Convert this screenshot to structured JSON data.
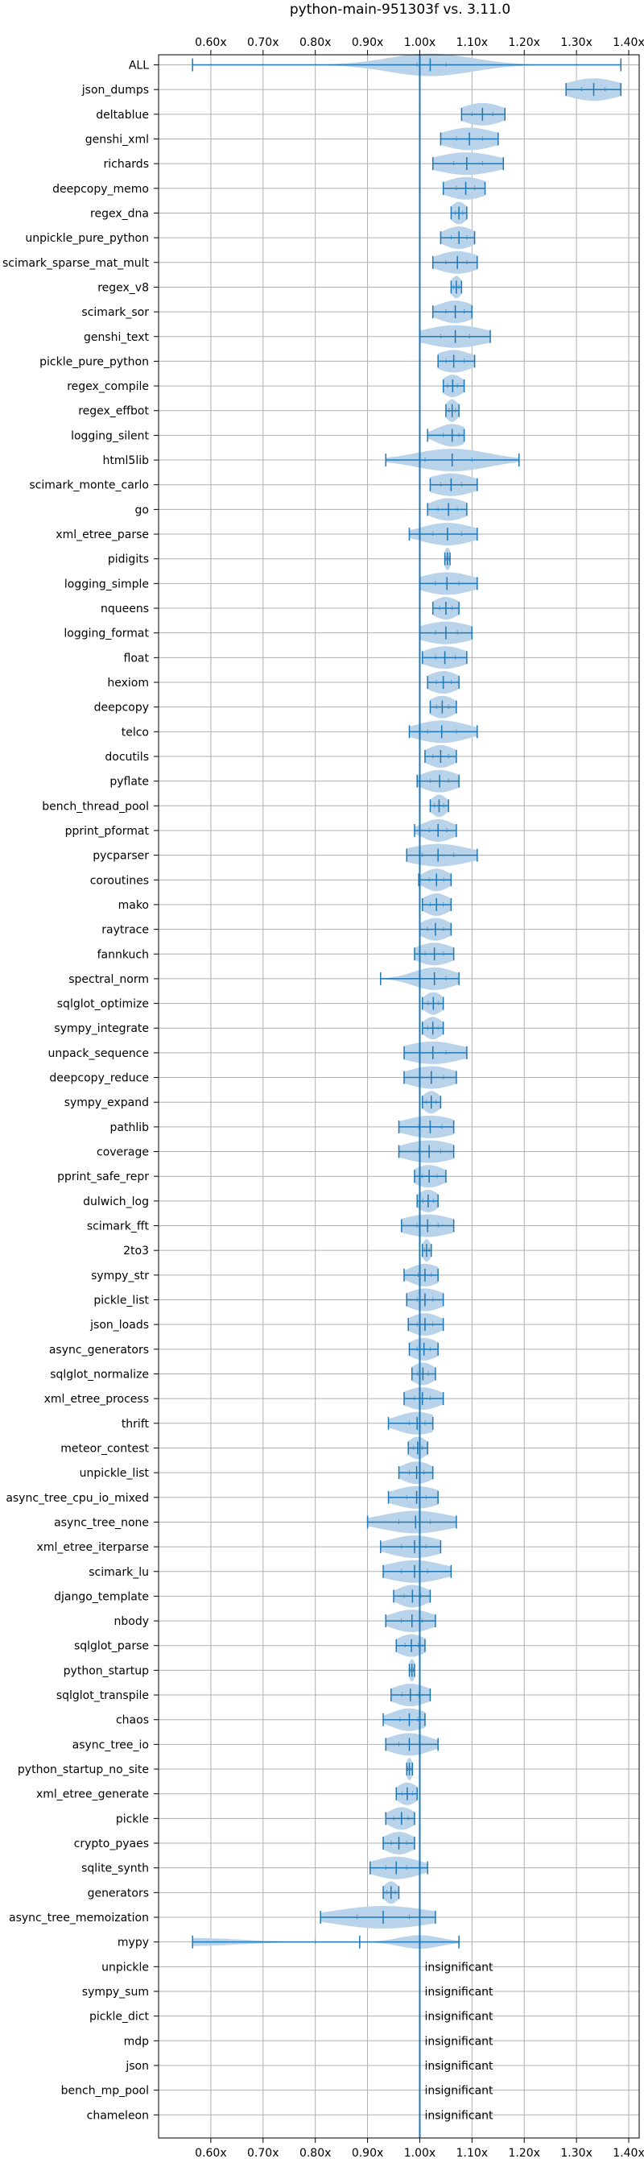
{
  "chart_data": {
    "type": "violin",
    "title": "python-main-951303f vs. 3.11.0",
    "orientation": "horizontal",
    "xlim": [
      0.5,
      1.42
    ],
    "xticks": [
      0.6,
      0.7,
      0.8,
      0.9,
      1.0,
      1.1,
      1.2,
      1.3,
      1.4
    ],
    "xtick_labels": [
      "0.60x",
      "0.70x",
      "0.80x",
      "0.90x",
      "1.00x",
      "1.10x",
      "1.20x",
      "1.30x",
      "1.40x"
    ],
    "xtick_positions": [
      "top",
      "bottom"
    ],
    "reference_line": 1.0,
    "grid": true,
    "colors": {
      "violin": "#b9d3ea",
      "line": "#1f77b4",
      "grid": "#b0b0b0",
      "text": "#000000"
    },
    "insignificant_text": "insignificant",
    "benchmarks": [
      {
        "name": "ALL",
        "min": 0.565,
        "max": 1.385,
        "median": 1.02,
        "q1": 0.995,
        "q3": 1.05,
        "spread": 0.08
      },
      {
        "name": "json_dumps",
        "min": 1.28,
        "max": 1.385,
        "median": 1.333,
        "q1": 1.31,
        "q3": 1.355,
        "spread": 0.05
      },
      {
        "name": "deltablue",
        "min": 1.08,
        "max": 1.163,
        "median": 1.12,
        "q1": 1.1,
        "q3": 1.14,
        "spread": 0.04
      },
      {
        "name": "genshi_xml",
        "min": 1.04,
        "max": 1.15,
        "median": 1.095,
        "q1": 1.07,
        "q3": 1.12,
        "spread": 0.05
      },
      {
        "name": "richards",
        "min": 1.025,
        "max": 1.16,
        "median": 1.09,
        "q1": 1.065,
        "q3": 1.12,
        "spread": 0.06
      },
      {
        "name": "deepcopy_memo",
        "min": 1.045,
        "max": 1.125,
        "median": 1.088,
        "q1": 1.07,
        "q3": 1.105,
        "spread": 0.04
      },
      {
        "name": "regex_dna",
        "min": 1.06,
        "max": 1.09,
        "median": 1.075,
        "q1": 1.068,
        "q3": 1.082,
        "spread": 0.015
      },
      {
        "name": "unpickle_pure_python",
        "min": 1.04,
        "max": 1.105,
        "median": 1.075,
        "q1": 1.06,
        "q3": 1.09,
        "spread": 0.03
      },
      {
        "name": "scimark_sparse_mat_mult",
        "min": 1.025,
        "max": 1.11,
        "median": 1.072,
        "q1": 1.05,
        "q3": 1.09,
        "spread": 0.04
      },
      {
        "name": "regex_v8",
        "min": 1.06,
        "max": 1.08,
        "median": 1.07,
        "q1": 1.065,
        "q3": 1.075,
        "spread": 0.01
      },
      {
        "name": "scimark_sor",
        "min": 1.025,
        "max": 1.1,
        "median": 1.068,
        "q1": 1.05,
        "q3": 1.085,
        "spread": 0.035
      },
      {
        "name": "genshi_text",
        "min": 1.0,
        "max": 1.135,
        "median": 1.068,
        "q1": 1.04,
        "q3": 1.095,
        "spread": 0.06
      },
      {
        "name": "pickle_pure_python",
        "min": 1.035,
        "max": 1.105,
        "median": 1.065,
        "q1": 1.05,
        "q3": 1.085,
        "spread": 0.035
      },
      {
        "name": "regex_compile",
        "min": 1.045,
        "max": 1.085,
        "median": 1.063,
        "q1": 1.053,
        "q3": 1.072,
        "spread": 0.02
      },
      {
        "name": "regex_effbot",
        "min": 1.05,
        "max": 1.075,
        "median": 1.062,
        "q1": 1.056,
        "q3": 1.068,
        "spread": 0.012
      },
      {
        "name": "logging_silent",
        "min": 1.015,
        "max": 1.085,
        "median": 1.062,
        "q1": 1.045,
        "q3": 1.075,
        "spread": 0.03
      },
      {
        "name": "html5lib",
        "min": 0.935,
        "max": 1.19,
        "median": 1.062,
        "q1": 1.01,
        "q3": 1.1,
        "spread": 0.07
      },
      {
        "name": "scimark_monte_carlo",
        "min": 1.02,
        "max": 1.11,
        "median": 1.06,
        "q1": 1.04,
        "q3": 1.08,
        "spread": 0.045
      },
      {
        "name": "go",
        "min": 1.015,
        "max": 1.09,
        "median": 1.055,
        "q1": 1.035,
        "q3": 1.072,
        "spread": 0.035
      },
      {
        "name": "xml_etree_parse",
        "min": 0.98,
        "max": 1.11,
        "median": 1.053,
        "q1": 1.025,
        "q3": 1.08,
        "spread": 0.05
      },
      {
        "name": "pidigits",
        "min": 1.048,
        "max": 1.058,
        "median": 1.053,
        "q1": 1.05,
        "q3": 1.056,
        "spread": 0.006
      },
      {
        "name": "logging_simple",
        "min": 1.0,
        "max": 1.11,
        "median": 1.052,
        "q1": 1.03,
        "q3": 1.075,
        "spread": 0.05
      },
      {
        "name": "nqueens",
        "min": 1.025,
        "max": 1.075,
        "median": 1.05,
        "q1": 1.038,
        "q3": 1.062,
        "spread": 0.025
      },
      {
        "name": "logging_format",
        "min": 1.0,
        "max": 1.1,
        "median": 1.05,
        "q1": 1.03,
        "q3": 1.072,
        "spread": 0.05
      },
      {
        "name": "float",
        "min": 1.005,
        "max": 1.09,
        "median": 1.048,
        "q1": 1.03,
        "q3": 1.068,
        "spread": 0.04
      },
      {
        "name": "hexiom",
        "min": 1.015,
        "max": 1.075,
        "median": 1.045,
        "q1": 1.032,
        "q3": 1.06,
        "spread": 0.03
      },
      {
        "name": "deepcopy",
        "min": 1.02,
        "max": 1.07,
        "median": 1.043,
        "q1": 1.032,
        "q3": 1.055,
        "spread": 0.025
      },
      {
        "name": "telco",
        "min": 0.98,
        "max": 1.11,
        "median": 1.042,
        "q1": 1.015,
        "q3": 1.07,
        "spread": 0.05
      },
      {
        "name": "docutils",
        "min": 1.01,
        "max": 1.07,
        "median": 1.04,
        "q1": 1.025,
        "q3": 1.055,
        "spread": 0.028
      },
      {
        "name": "pyflate",
        "min": 0.995,
        "max": 1.075,
        "median": 1.038,
        "q1": 1.02,
        "q3": 1.055,
        "spread": 0.035
      },
      {
        "name": "bench_thread_pool",
        "min": 1.02,
        "max": 1.055,
        "median": 1.037,
        "q1": 1.028,
        "q3": 1.046,
        "spread": 0.015
      },
      {
        "name": "pprint_pformat",
        "min": 0.99,
        "max": 1.07,
        "median": 1.035,
        "q1": 1.018,
        "q3": 1.052,
        "spread": 0.03
      },
      {
        "name": "pycparser",
        "min": 0.975,
        "max": 1.11,
        "median": 1.035,
        "q1": 1.005,
        "q3": 1.065,
        "spread": 0.06
      },
      {
        "name": "coroutines",
        "min": 0.998,
        "max": 1.06,
        "median": 1.032,
        "q1": 1.018,
        "q3": 1.046,
        "spread": 0.025
      },
      {
        "name": "mako",
        "min": 1.005,
        "max": 1.06,
        "median": 1.032,
        "q1": 1.02,
        "q3": 1.045,
        "spread": 0.025
      },
      {
        "name": "raytrace",
        "min": 1.0,
        "max": 1.06,
        "median": 1.03,
        "q1": 1.015,
        "q3": 1.045,
        "spread": 0.028
      },
      {
        "name": "fannkuch",
        "min": 0.99,
        "max": 1.065,
        "median": 1.028,
        "q1": 1.01,
        "q3": 1.045,
        "spread": 0.035
      },
      {
        "name": "spectral_norm",
        "min": 0.925,
        "max": 1.075,
        "median": 1.028,
        "q1": 1.0,
        "q3": 1.05,
        "spread": 0.04
      },
      {
        "name": "sqlglot_optimize",
        "min": 1.005,
        "max": 1.045,
        "median": 1.026,
        "q1": 1.016,
        "q3": 1.036,
        "spread": 0.018
      },
      {
        "name": "sympy_integrate",
        "min": 1.005,
        "max": 1.045,
        "median": 1.025,
        "q1": 1.015,
        "q3": 1.035,
        "spread": 0.018
      },
      {
        "name": "unpack_sequence",
        "min": 0.97,
        "max": 1.09,
        "median": 1.025,
        "q1": 1.0,
        "q3": 1.05,
        "spread": 0.055
      },
      {
        "name": "deepcopy_reduce",
        "min": 0.97,
        "max": 1.07,
        "median": 1.022,
        "q1": 1.0,
        "q3": 1.045,
        "spread": 0.045
      },
      {
        "name": "sympy_expand",
        "min": 1.005,
        "max": 1.04,
        "median": 1.022,
        "q1": 1.013,
        "q3": 1.031,
        "spread": 0.016
      },
      {
        "name": "pathlib",
        "min": 0.96,
        "max": 1.065,
        "median": 1.02,
        "q1": 0.998,
        "q3": 1.042,
        "spread": 0.05
      },
      {
        "name": "coverage",
        "min": 0.96,
        "max": 1.065,
        "median": 1.018,
        "q1": 0.998,
        "q3": 1.04,
        "spread": 0.05
      },
      {
        "name": "pprint_safe_repr",
        "min": 0.99,
        "max": 1.05,
        "median": 1.018,
        "q1": 1.005,
        "q3": 1.033,
        "spread": 0.03
      },
      {
        "name": "dulwich_log",
        "min": 0.995,
        "max": 1.035,
        "median": 1.016,
        "q1": 1.006,
        "q3": 1.026,
        "spread": 0.02
      },
      {
        "name": "scimark_fft",
        "min": 0.965,
        "max": 1.065,
        "median": 1.015,
        "q1": 0.995,
        "q3": 1.035,
        "spread": 0.05
      },
      {
        "name": "2to3",
        "min": 1.005,
        "max": 1.022,
        "median": 1.013,
        "q1": 1.009,
        "q3": 1.018,
        "spread": 0.008
      },
      {
        "name": "sympy_str",
        "min": 0.97,
        "max": 1.035,
        "median": 1.01,
        "q1": 0.997,
        "q3": 1.022,
        "spread": 0.03
      },
      {
        "name": "pickle_list",
        "min": 0.975,
        "max": 1.045,
        "median": 1.01,
        "q1": 0.995,
        "q3": 1.025,
        "spread": 0.035
      },
      {
        "name": "json_loads",
        "min": 0.978,
        "max": 1.045,
        "median": 1.01,
        "q1": 0.995,
        "q3": 1.025,
        "spread": 0.03
      },
      {
        "name": "async_generators",
        "min": 0.98,
        "max": 1.035,
        "median": 1.008,
        "q1": 0.995,
        "q3": 1.02,
        "spread": 0.028
      },
      {
        "name": "sqlglot_normalize",
        "min": 0.985,
        "max": 1.03,
        "median": 1.006,
        "q1": 0.996,
        "q3": 1.016,
        "spread": 0.022
      },
      {
        "name": "xml_etree_process",
        "min": 0.97,
        "max": 1.045,
        "median": 1.005,
        "q1": 0.99,
        "q3": 1.02,
        "spread": 0.035
      },
      {
        "name": "thrift",
        "min": 0.94,
        "max": 1.025,
        "median": 0.995,
        "q1": 0.98,
        "q3": 1.01,
        "spread": 0.04
      },
      {
        "name": "meteor_contest",
        "min": 0.978,
        "max": 1.015,
        "median": 0.996,
        "q1": 0.988,
        "q3": 1.005,
        "spread": 0.018
      },
      {
        "name": "unpickle_list",
        "min": 0.96,
        "max": 1.025,
        "median": 0.994,
        "q1": 0.98,
        "q3": 1.008,
        "spread": 0.03
      },
      {
        "name": "async_tree_cpu_io_mixed",
        "min": 0.94,
        "max": 1.035,
        "median": 0.994,
        "q1": 0.975,
        "q3": 1.012,
        "spread": 0.045
      },
      {
        "name": "async_tree_none",
        "min": 0.9,
        "max": 1.07,
        "median": 0.992,
        "q1": 0.96,
        "q3": 1.02,
        "spread": 0.065
      },
      {
        "name": "xml_etree_iterparse",
        "min": 0.925,
        "max": 1.04,
        "median": 0.99,
        "q1": 0.965,
        "q3": 1.012,
        "spread": 0.05
      },
      {
        "name": "scimark_lu",
        "min": 0.93,
        "max": 1.06,
        "median": 0.99,
        "q1": 0.965,
        "q3": 1.015,
        "spread": 0.055
      },
      {
        "name": "django_template",
        "min": 0.95,
        "max": 1.02,
        "median": 0.986,
        "q1": 0.97,
        "q3": 1.002,
        "spread": 0.03
      },
      {
        "name": "nbody",
        "min": 0.935,
        "max": 1.03,
        "median": 0.985,
        "q1": 0.965,
        "q3": 1.005,
        "spread": 0.04
      },
      {
        "name": "sqlglot_parse",
        "min": 0.955,
        "max": 1.01,
        "median": 0.984,
        "q1": 0.972,
        "q3": 0.997,
        "spread": 0.028
      },
      {
        "name": "python_startup",
        "min": 0.98,
        "max": 0.99,
        "median": 0.985,
        "q1": 0.982,
        "q3": 0.988,
        "spread": 0.006
      },
      {
        "name": "sqlglot_transpile",
        "min": 0.945,
        "max": 1.02,
        "median": 0.982,
        "q1": 0.966,
        "q3": 0.998,
        "spread": 0.035
      },
      {
        "name": "chaos",
        "min": 0.93,
        "max": 1.01,
        "median": 0.98,
        "q1": 0.962,
        "q3": 0.996,
        "spread": 0.035
      },
      {
        "name": "async_tree_io",
        "min": 0.935,
        "max": 1.035,
        "median": 0.98,
        "q1": 0.96,
        "q3": 1.0,
        "spread": 0.04
      },
      {
        "name": "python_startup_no_site",
        "min": 0.975,
        "max": 0.986,
        "median": 0.98,
        "q1": 0.977,
        "q3": 0.983,
        "spread": 0.006
      },
      {
        "name": "xml_etree_generate",
        "min": 0.955,
        "max": 0.995,
        "median": 0.976,
        "q1": 0.966,
        "q3": 0.986,
        "spread": 0.02
      },
      {
        "name": "pickle",
        "min": 0.935,
        "max": 0.99,
        "median": 0.965,
        "q1": 0.95,
        "q3": 0.978,
        "spread": 0.025
      },
      {
        "name": "crypto_pyaes",
        "min": 0.93,
        "max": 0.99,
        "median": 0.96,
        "q1": 0.945,
        "q3": 0.975,
        "spread": 0.028
      },
      {
        "name": "sqlite_synth",
        "min": 0.905,
        "max": 1.015,
        "median": 0.955,
        "q1": 0.935,
        "q3": 0.975,
        "spread": 0.045
      },
      {
        "name": "generators",
        "min": 0.93,
        "max": 0.96,
        "median": 0.945,
        "q1": 0.937,
        "q3": 0.953,
        "spread": 0.014
      },
      {
        "name": "async_tree_memoization",
        "min": 0.81,
        "max": 1.03,
        "median": 0.93,
        "q1": 0.88,
        "q3": 0.98,
        "spread": 0.09
      },
      {
        "name": "mypy",
        "min": 0.565,
        "max": 1.075,
        "median": 0.885,
        "q1": 0.8,
        "q3": 1.0,
        "spread": 0.06,
        "skewed": true
      },
      {
        "name": "unpickle",
        "insignificant": true
      },
      {
        "name": "sympy_sum",
        "insignificant": true
      },
      {
        "name": "pickle_dict",
        "insignificant": true
      },
      {
        "name": "mdp",
        "insignificant": true
      },
      {
        "name": "json",
        "insignificant": true
      },
      {
        "name": "bench_mp_pool",
        "insignificant": true
      },
      {
        "name": "chameleon",
        "insignificant": true
      }
    ]
  }
}
